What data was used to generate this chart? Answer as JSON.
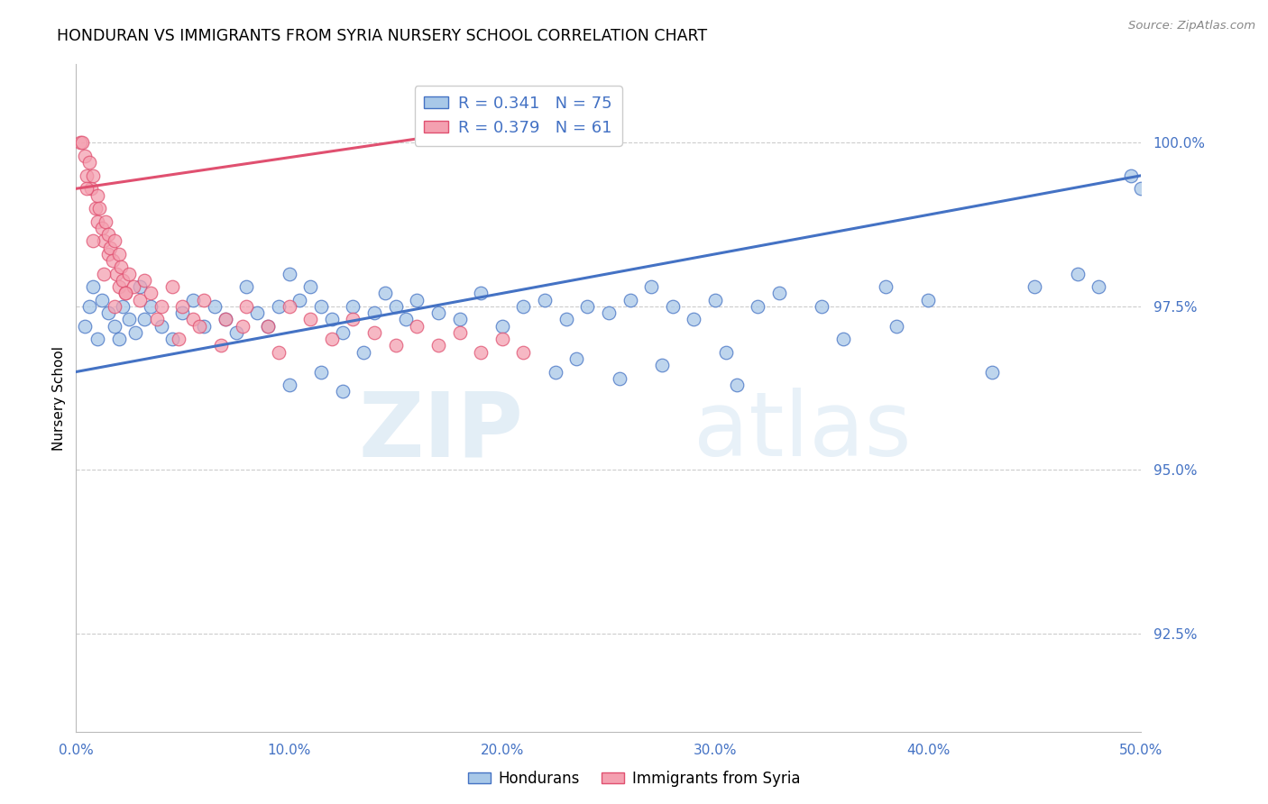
{
  "title": "HONDURAN VS IMMIGRANTS FROM SYRIA NURSERY SCHOOL CORRELATION CHART",
  "source": "Source: ZipAtlas.com",
  "ylabel": "Nursery School",
  "x_min": 0.0,
  "x_max": 50.0,
  "y_min": 91.0,
  "y_max": 101.2,
  "yticks": [
    92.5,
    95.0,
    97.5,
    100.0
  ],
  "xticks": [
    0.0,
    10.0,
    20.0,
    30.0,
    40.0,
    50.0
  ],
  "xtick_labels": [
    "0.0%",
    "10.0%",
    "20.0%",
    "30.0%",
    "40.0%",
    "50.0%"
  ],
  "ytick_labels": [
    "92.5%",
    "95.0%",
    "97.5%",
    "100.0%"
  ],
  "blue_color": "#a8c8e8",
  "pink_color": "#f4a0b0",
  "blue_line_color": "#4472c4",
  "pink_line_color": "#e05070",
  "legend_blue_R": "0.341",
  "legend_blue_N": "75",
  "legend_pink_R": "0.379",
  "legend_pink_N": "61",
  "legend_label_blue": "Hondurans",
  "legend_label_pink": "Immigrants from Syria",
  "watermark_zip": "ZIP",
  "watermark_atlas": "atlas",
  "blue_trend_x0": 0.0,
  "blue_trend_y0": 96.5,
  "blue_trend_x1": 50.0,
  "blue_trend_y1": 99.5,
  "pink_trend_x0": 0.0,
  "pink_trend_y0": 99.3,
  "pink_trend_x1": 21.0,
  "pink_trend_y1": 100.3,
  "blue_scatter_x": [
    0.4,
    0.6,
    0.8,
    1.0,
    1.2,
    1.5,
    1.8,
    2.0,
    2.2,
    2.5,
    2.8,
    3.0,
    3.2,
    3.5,
    4.0,
    4.5,
    5.0,
    5.5,
    6.0,
    6.5,
    7.0,
    7.5,
    8.0,
    8.5,
    9.0,
    9.5,
    10.0,
    10.5,
    11.0,
    11.5,
    12.0,
    12.5,
    13.0,
    14.0,
    14.5,
    15.0,
    15.5,
    16.0,
    17.0,
    18.0,
    19.0,
    20.0,
    21.0,
    22.0,
    23.0,
    24.0,
    25.0,
    26.0,
    27.0,
    28.0,
    29.0,
    30.0,
    32.0,
    33.0,
    35.0,
    38.0,
    40.0,
    45.0,
    47.0,
    48.0,
    49.5,
    30.5,
    36.0,
    38.5,
    10.0,
    11.5,
    12.5,
    13.5,
    22.5,
    23.5,
    25.5,
    27.5,
    31.0,
    43.0,
    50.0
  ],
  "blue_scatter_y": [
    97.2,
    97.5,
    97.8,
    97.0,
    97.6,
    97.4,
    97.2,
    97.0,
    97.5,
    97.3,
    97.1,
    97.8,
    97.3,
    97.5,
    97.2,
    97.0,
    97.4,
    97.6,
    97.2,
    97.5,
    97.3,
    97.1,
    97.8,
    97.4,
    97.2,
    97.5,
    98.0,
    97.6,
    97.8,
    97.5,
    97.3,
    97.1,
    97.5,
    97.4,
    97.7,
    97.5,
    97.3,
    97.6,
    97.4,
    97.3,
    97.7,
    97.2,
    97.5,
    97.6,
    97.3,
    97.5,
    97.4,
    97.6,
    97.8,
    97.5,
    97.3,
    97.6,
    97.5,
    97.7,
    97.5,
    97.8,
    97.6,
    97.8,
    98.0,
    97.8,
    99.5,
    96.8,
    97.0,
    97.2,
    96.3,
    96.5,
    96.2,
    96.8,
    96.5,
    96.7,
    96.4,
    96.6,
    96.3,
    96.5,
    99.3
  ],
  "pink_scatter_x": [
    0.2,
    0.3,
    0.4,
    0.5,
    0.6,
    0.7,
    0.8,
    0.9,
    1.0,
    1.0,
    1.1,
    1.2,
    1.3,
    1.4,
    1.5,
    1.5,
    1.6,
    1.7,
    1.8,
    1.9,
    2.0,
    2.0,
    2.1,
    2.2,
    2.3,
    2.5,
    2.7,
    3.0,
    3.2,
    3.5,
    4.0,
    4.5,
    5.0,
    5.5,
    6.0,
    7.0,
    8.0,
    9.0,
    10.0,
    11.0,
    12.0,
    13.0,
    14.0,
    15.0,
    16.0,
    17.0,
    18.0,
    19.0,
    20.0,
    21.0,
    0.5,
    0.8,
    1.3,
    1.8,
    2.3,
    3.8,
    4.8,
    5.8,
    6.8,
    7.8,
    9.5
  ],
  "pink_scatter_y": [
    100.0,
    100.0,
    99.8,
    99.5,
    99.7,
    99.3,
    99.5,
    99.0,
    99.2,
    98.8,
    99.0,
    98.7,
    98.5,
    98.8,
    98.3,
    98.6,
    98.4,
    98.2,
    98.5,
    98.0,
    98.3,
    97.8,
    98.1,
    97.9,
    97.7,
    98.0,
    97.8,
    97.6,
    97.9,
    97.7,
    97.5,
    97.8,
    97.5,
    97.3,
    97.6,
    97.3,
    97.5,
    97.2,
    97.5,
    97.3,
    97.0,
    97.3,
    97.1,
    96.9,
    97.2,
    96.9,
    97.1,
    96.8,
    97.0,
    96.8,
    99.3,
    98.5,
    98.0,
    97.5,
    97.7,
    97.3,
    97.0,
    97.2,
    96.9,
    97.2,
    96.8
  ]
}
